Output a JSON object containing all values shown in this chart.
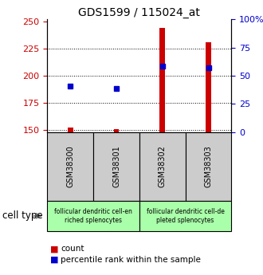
{
  "title": "GDS1599 / 115024_at",
  "samples": [
    "GSM38300",
    "GSM38301",
    "GSM38302",
    "GSM38303"
  ],
  "count_values": [
    152,
    151,
    244,
    231
  ],
  "percentile_values": [
    190,
    188,
    209,
    207
  ],
  "ylim_left": [
    148,
    252
  ],
  "ylim_right": [
    0,
    100
  ],
  "yticks_left": [
    150,
    175,
    200,
    225,
    250
  ],
  "yticks_right": [
    0,
    25,
    50,
    75,
    100
  ],
  "ytick_labels_right": [
    "0",
    "25",
    "50",
    "75",
    "100%"
  ],
  "bar_color": "#cc0000",
  "dot_color": "#0000cc",
  "left_tick_color": "#cc0000",
  "right_tick_color": "#0000cc",
  "cell_type_groups": [
    {
      "label": "follicular dendritic cell-en\nriched splenocytes",
      "samples": [
        0,
        1
      ],
      "color": "#aaffaa"
    },
    {
      "label": "follicular dendritic cell-de\npleted splenocytes",
      "samples": [
        2,
        3
      ],
      "color": "#aaffaa"
    }
  ],
  "cell_type_label": "cell type",
  "legend_count_label": "count",
  "legend_pct_label": "percentile rank within the sample",
  "bar_width": 0.12,
  "sample_box_color": "#cccccc"
}
